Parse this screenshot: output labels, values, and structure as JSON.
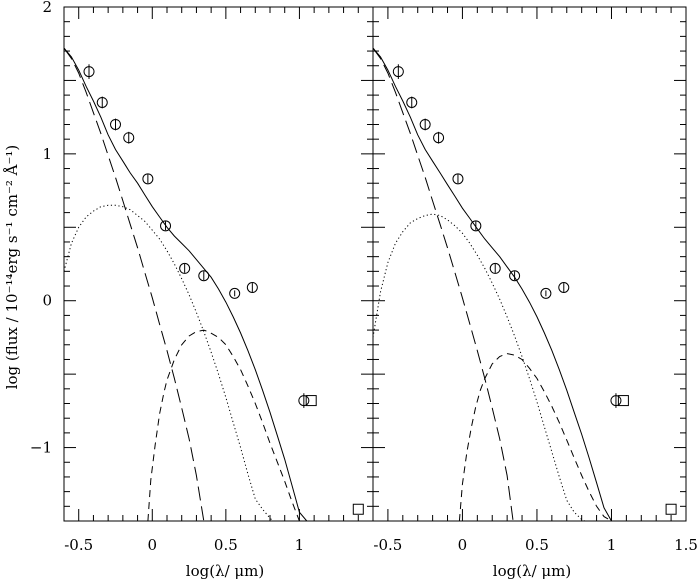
{
  "chart_data": {
    "type": "line",
    "ylabel": "log (flux / 10⁻¹⁴erg s⁻¹ cm⁻² Å⁻¹)",
    "xlabel": "log(λ/ μm)",
    "shared_ylim": [
      -1.5,
      2
    ],
    "y_ticks": [
      -1,
      0,
      1,
      2
    ],
    "y_tick_labels": [
      "−1",
      "0",
      "1",
      "2"
    ],
    "panels": [
      {
        "xlim": [
          -0.6,
          1.5
        ],
        "x_ticks": [
          -0.5,
          0,
          0.5,
          1
        ],
        "x_tick_labels": [
          "-0.5",
          "0",
          "0.5",
          "1"
        ],
        "series": [
          {
            "style": "solid",
            "x": [
              -0.6,
              -0.55,
              -0.5,
              -0.45,
              -0.4,
              -0.35,
              -0.3,
              -0.25,
              -0.2,
              -0.15,
              -0.1,
              -0.05,
              0,
              0.05,
              0.1,
              0.15,
              0.2,
              0.25,
              0.3,
              0.35,
              0.4,
              0.45,
              0.5,
              0.55,
              0.6,
              0.65,
              0.7,
              0.75,
              0.8,
              0.85,
              0.9,
              0.95,
              1.0,
              1.05
            ],
            "y": [
              1.72,
              1.66,
              1.57,
              1.46,
              1.36,
              1.25,
              1.13,
              1.03,
              0.95,
              0.87,
              0.8,
              0.72,
              0.64,
              0.57,
              0.5,
              0.44,
              0.39,
              0.34,
              0.28,
              0.22,
              0.16,
              0.08,
              -0.01,
              -0.11,
              -0.22,
              -0.34,
              -0.47,
              -0.61,
              -0.76,
              -0.92,
              -1.08,
              -1.26,
              -1.44,
              -1.5
            ]
          },
          {
            "style": "long-dash",
            "x": [
              -0.6,
              -0.55,
              -0.5,
              -0.45,
              -0.4,
              -0.35,
              -0.3,
              -0.25,
              -0.2,
              -0.15,
              -0.1,
              -0.05,
              0,
              0.05,
              0.1,
              0.15,
              0.2,
              0.25,
              0.3,
              0.35
            ],
            "y": [
              1.72,
              1.65,
              1.55,
              1.42,
              1.28,
              1.14,
              0.99,
              0.84,
              0.68,
              0.52,
              0.36,
              0.19,
              0.02,
              -0.16,
              -0.34,
              -0.53,
              -0.73,
              -0.94,
              -1.19,
              -1.5
            ]
          },
          {
            "style": "dotted",
            "x": [
              -0.6,
              -0.55,
              -0.5,
              -0.45,
              -0.4,
              -0.35,
              -0.3,
              -0.25,
              -0.2,
              -0.15,
              -0.1,
              -0.05,
              0,
              0.05,
              0.1,
              0.15,
              0.2,
              0.25,
              0.3,
              0.35,
              0.4,
              0.45,
              0.5,
              0.55,
              0.6,
              0.65,
              0.7,
              0.75,
              0.8,
              0.82
            ],
            "y": [
              0.2,
              0.39,
              0.5,
              0.57,
              0.61,
              0.64,
              0.65,
              0.65,
              0.64,
              0.62,
              0.58,
              0.54,
              0.48,
              0.42,
              0.34,
              0.25,
              0.15,
              0.04,
              -0.08,
              -0.21,
              -0.35,
              -0.5,
              -0.66,
              -0.83,
              -1.0,
              -1.18,
              -1.35,
              -1.42,
              -1.48,
              -1.5
            ]
          },
          {
            "style": "short-dash",
            "x": [
              -0.03,
              -0.01,
              0.02,
              0.05,
              0.08,
              0.1,
              0.15,
              0.2,
              0.25,
              0.3,
              0.35,
              0.38,
              0.45,
              0.5,
              0.55,
              0.6,
              0.65,
              0.7,
              0.75,
              0.8,
              0.85,
              0.9,
              0.95,
              1.0
            ],
            "y": [
              -1.5,
              -1.22,
              -0.98,
              -0.77,
              -0.62,
              -0.54,
              -0.4,
              -0.3,
              -0.24,
              -0.21,
              -0.2,
              -0.21,
              -0.25,
              -0.3,
              -0.38,
              -0.47,
              -0.58,
              -0.7,
              -0.83,
              -0.97,
              -1.1,
              -1.23,
              -1.37,
              -1.5
            ]
          }
        ],
        "points": [
          {
            "x": -0.43,
            "y": 1.56,
            "err": 0.05
          },
          {
            "x": -0.34,
            "y": 1.35,
            "err": 0.04
          },
          {
            "x": -0.25,
            "y": 1.2,
            "err": 0.04
          },
          {
            "x": -0.16,
            "y": 1.11,
            "err": 0.04
          },
          {
            "x": -0.03,
            "y": 0.83,
            "err": 0.03
          },
          {
            "x": 0.09,
            "y": 0.51,
            "err": 0.03
          },
          {
            "x": 0.22,
            "y": 0.22,
            "err": 0.03
          },
          {
            "x": 0.35,
            "y": 0.17,
            "err": 0.03
          },
          {
            "x": 0.56,
            "y": 0.05,
            "err": 0.02
          },
          {
            "x": 0.68,
            "y": 0.09,
            "err": 0.03
          },
          {
            "x": 1.03,
            "y": -0.68,
            "err": 0.05
          }
        ],
        "upper_limits": [
          {
            "x": 1.08,
            "y": -0.68
          },
          {
            "x": 1.4,
            "y": -1.42
          }
        ]
      },
      {
        "xlim": [
          -0.6,
          1.5
        ],
        "x_ticks": [
          -0.5,
          0,
          0.5,
          1,
          1.5
        ],
        "x_tick_labels": [
          "-0.5",
          "0",
          "0.5",
          "1",
          "1.5"
        ],
        "series": [
          {
            "style": "solid",
            "x": [
              -0.6,
              -0.55,
              -0.5,
              -0.45,
              -0.4,
              -0.35,
              -0.3,
              -0.25,
              -0.2,
              -0.15,
              -0.1,
              -0.05,
              0,
              0.05,
              0.1,
              0.15,
              0.2,
              0.25,
              0.3,
              0.35,
              0.4,
              0.45,
              0.5,
              0.55,
              0.6,
              0.65,
              0.7,
              0.75,
              0.8,
              0.85,
              0.9,
              0.95,
              1.0
            ],
            "y": [
              1.72,
              1.66,
              1.57,
              1.46,
              1.36,
              1.25,
              1.13,
              1.03,
              0.95,
              0.87,
              0.79,
              0.71,
              0.63,
              0.56,
              0.49,
              0.42,
              0.36,
              0.3,
              0.23,
              0.16,
              0.08,
              -0.01,
              -0.11,
              -0.22,
              -0.34,
              -0.47,
              -0.61,
              -0.76,
              -0.91,
              -1.07,
              -1.24,
              -1.41,
              -1.5
            ]
          },
          {
            "style": "long-dash",
            "x": [
              -0.6,
              -0.55,
              -0.5,
              -0.45,
              -0.4,
              -0.35,
              -0.3,
              -0.25,
              -0.2,
              -0.15,
              -0.1,
              -0.05,
              0,
              0.05,
              0.1,
              0.15,
              0.2,
              0.25,
              0.3,
              0.34
            ],
            "y": [
              1.72,
              1.65,
              1.55,
              1.42,
              1.28,
              1.14,
              0.99,
              0.84,
              0.68,
              0.52,
              0.36,
              0.19,
              0.02,
              -0.16,
              -0.34,
              -0.53,
              -0.73,
              -0.94,
              -1.19,
              -1.5
            ]
          },
          {
            "style": "dotted",
            "x": [
              -0.6,
              -0.55,
              -0.5,
              -0.45,
              -0.4,
              -0.35,
              -0.3,
              -0.25,
              -0.2,
              -0.15,
              -0.1,
              -0.05,
              0,
              0.05,
              0.1,
              0.15,
              0.2,
              0.25,
              0.3,
              0.35,
              0.4,
              0.45,
              0.5,
              0.55,
              0.6,
              0.65,
              0.7,
              0.75,
              0.8,
              0.82
            ],
            "y": [
              -0.25,
              0.06,
              0.26,
              0.39,
              0.47,
              0.53,
              0.56,
              0.58,
              0.59,
              0.58,
              0.55,
              0.51,
              0.46,
              0.39,
              0.31,
              0.22,
              0.12,
              0.01,
              -0.11,
              -0.24,
              -0.38,
              -0.53,
              -0.69,
              -0.86,
              -1.03,
              -1.2,
              -1.36,
              -1.44,
              -1.49,
              -1.5
            ]
          },
          {
            "style": "short-dash",
            "x": [
              -0.02,
              0,
              0.03,
              0.06,
              0.09,
              0.12,
              0.15,
              0.2,
              0.25,
              0.3,
              0.35,
              0.4,
              0.45,
              0.5,
              0.55,
              0.6,
              0.65,
              0.7,
              0.75,
              0.8,
              0.85,
              0.9,
              0.95,
              1.0
            ],
            "y": [
              -1.5,
              -1.25,
              -1.03,
              -0.86,
              -0.72,
              -0.61,
              -0.53,
              -0.43,
              -0.38,
              -0.36,
              -0.37,
              -0.4,
              -0.46,
              -0.53,
              -0.62,
              -0.72,
              -0.83,
              -0.95,
              -1.07,
              -1.19,
              -1.3,
              -1.4,
              -1.47,
              -1.5
            ]
          }
        ],
        "points": [
          {
            "x": -0.43,
            "y": 1.56,
            "err": 0.05
          },
          {
            "x": -0.34,
            "y": 1.35,
            "err": 0.04
          },
          {
            "x": -0.25,
            "y": 1.2,
            "err": 0.04
          },
          {
            "x": -0.16,
            "y": 1.11,
            "err": 0.04
          },
          {
            "x": -0.03,
            "y": 0.83,
            "err": 0.03
          },
          {
            "x": 0.09,
            "y": 0.51,
            "err": 0.03
          },
          {
            "x": 0.22,
            "y": 0.22,
            "err": 0.03
          },
          {
            "x": 0.35,
            "y": 0.17,
            "err": 0.03
          },
          {
            "x": 0.56,
            "y": 0.05,
            "err": 0.02
          },
          {
            "x": 0.68,
            "y": 0.09,
            "err": 0.03
          },
          {
            "x": 1.03,
            "y": -0.68,
            "err": 0.05
          }
        ],
        "upper_limits": [
          {
            "x": 1.08,
            "y": -0.68
          },
          {
            "x": 1.4,
            "y": -1.42
          }
        ]
      }
    ]
  }
}
